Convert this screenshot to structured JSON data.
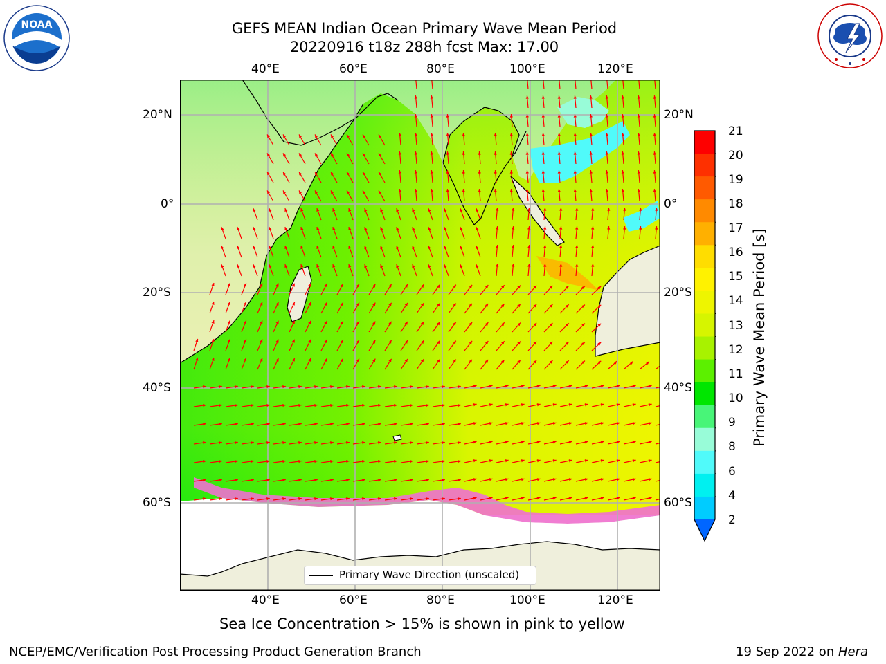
{
  "title": {
    "line1": "GEFS MEAN Indian Ocean Primary Wave Mean Period",
    "line2": "20220916 t18z 288h fcst   Max: 17.00"
  },
  "logos": {
    "noaa": {
      "text": "NOAA",
      "ring": "NATIONAL OCEANIC AND ATMOSPHERIC ADMINISTRATION · U.S. DEPARTMENT OF COMMERCE"
    },
    "nws": {
      "ring": "NATIONAL WEATHER SERVICE"
    }
  },
  "axes": {
    "lon_ticks": [
      "40°E",
      "60°E",
      "80°E",
      "100°E",
      "120°E"
    ],
    "lat_ticks": [
      "20°N",
      "0°",
      "20°S",
      "40°S",
      "60°S"
    ]
  },
  "colorbar": {
    "ticks": [
      "21",
      "20",
      "19",
      "18",
      "17",
      "16",
      "15",
      "14",
      "13",
      "12",
      "11",
      "10",
      "9",
      "8",
      "6",
      "4",
      "2"
    ],
    "label": "Primary Wave Mean Period [s]",
    "colors": [
      "#fe0000",
      "#fe3000",
      "#ff5a00",
      "#ff8a00",
      "#ffb000",
      "#ffdd00",
      "#fff200",
      "#eef500",
      "#d6f500",
      "#a8f200",
      "#5cf000",
      "#00e600",
      "#48f578",
      "#98fcd8",
      "#50fafa",
      "#00f0f0",
      "#00ccff",
      "#0066ff"
    ]
  },
  "legend": {
    "label": "Primary Wave Direction (unscaled)"
  },
  "note": "Sea Ice Concentration > 15% is shown in pink to yellow",
  "footer": {
    "left": "NCEP/EMC/Verification Post Processing Product Generation Branch",
    "right_prefix": "19 Sep 2022 on ",
    "right_machine": "Hera"
  },
  "colors": {
    "land": "#efefdc",
    "arrow": "#ff0000",
    "grid": "#b0b0b0"
  }
}
